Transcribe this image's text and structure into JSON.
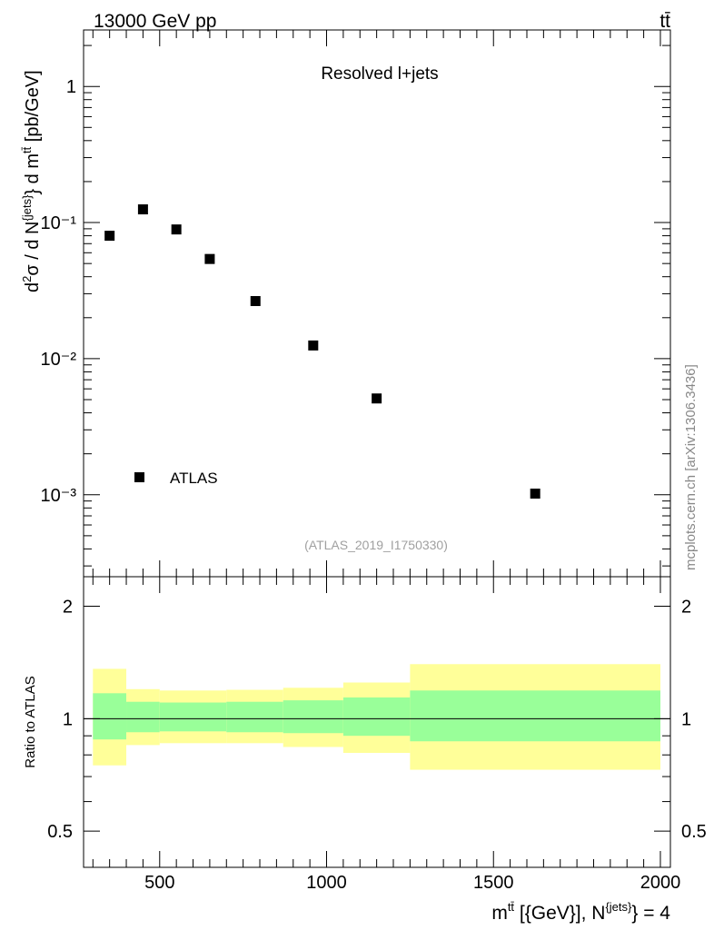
{
  "header": {
    "energy_label": "13000 GeV pp",
    "process_label": "tt̄"
  },
  "main_panel": {
    "annotation": "Resolved l+jets",
    "reference_label": "(ATLAS_2019_I1750330)",
    "legend_label": "ATLAS",
    "ylabel_text": "d²σ / d N^{jets} d m^{tt̄} [pb/GeV]",
    "ytick_labels": [
      "10⁻³",
      "10⁻²",
      "10⁻¹",
      "1"
    ]
  },
  "ratio_panel": {
    "ylabel": "Ratio to ATLAS",
    "ytick_labels": [
      "0.5",
      "1",
      "2"
    ]
  },
  "watermark": "mcplots.cern.ch [arXiv:1306.3436]",
  "xaxis": {
    "label_text": "m^{tt̄} [{GeV}], N^{jets} = 4",
    "tick_labels": [
      "500",
      "1000",
      "1500",
      "2000"
    ]
  },
  "chart_data": [
    {
      "type": "scatter",
      "title": "Resolved l+jets",
      "xlabel": "m^{tt̄} [{GeV}], N^{jets} = 4",
      "ylabel": "d²σ / d N^{jets} d m^{tt̄} [pb/GeV]",
      "yscale": "log",
      "xlim": [
        272,
        2030
      ],
      "ylim": [
        0.00025,
        2.6
      ],
      "legend_position": "bottom-left",
      "series": [
        {
          "name": "ATLAS",
          "color": "#000000",
          "marker": "square",
          "x": [
            350,
            450,
            550,
            650,
            787,
            960,
            1150,
            1625
          ],
          "y": [
            0.08,
            0.125,
            0.089,
            0.054,
            0.0265,
            0.0125,
            0.0051,
            0.00102
          ]
        }
      ]
    },
    {
      "type": "area",
      "title": "",
      "xlabel": "m^{tt̄} [{GeV}], N^{jets} = 4",
      "ylabel": "Ratio to ATLAS",
      "yscale": "log",
      "xlim": [
        272,
        2030
      ],
      "ylim": [
        0.4,
        2.4
      ],
      "reference_line": 1,
      "bins": [
        {
          "xlow": 300,
          "xhigh": 400,
          "inner": [
            0.88,
            1.17
          ],
          "outer": [
            0.75,
            1.36
          ]
        },
        {
          "xlow": 400,
          "xhigh": 500,
          "inner": [
            0.92,
            1.11
          ],
          "outer": [
            0.85,
            1.2
          ]
        },
        {
          "xlow": 500,
          "xhigh": 700,
          "inner": [
            0.925,
            1.105
          ],
          "outer": [
            0.86,
            1.19
          ]
        },
        {
          "xlow": 700,
          "xhigh": 870,
          "inner": [
            0.92,
            1.11
          ],
          "outer": [
            0.86,
            1.195
          ]
        },
        {
          "xlow": 870,
          "xhigh": 1050,
          "inner": [
            0.915,
            1.12
          ],
          "outer": [
            0.84,
            1.21
          ]
        },
        {
          "xlow": 1050,
          "xhigh": 1250,
          "inner": [
            0.9,
            1.14
          ],
          "outer": [
            0.81,
            1.25
          ]
        },
        {
          "xlow": 1250,
          "xhigh": 2000,
          "inner": [
            0.87,
            1.19
          ],
          "outer": [
            0.73,
            1.4
          ]
        }
      ],
      "colors": {
        "inner": "#99ff99",
        "outer": "#ffff99",
        "line": "#000000"
      }
    }
  ]
}
